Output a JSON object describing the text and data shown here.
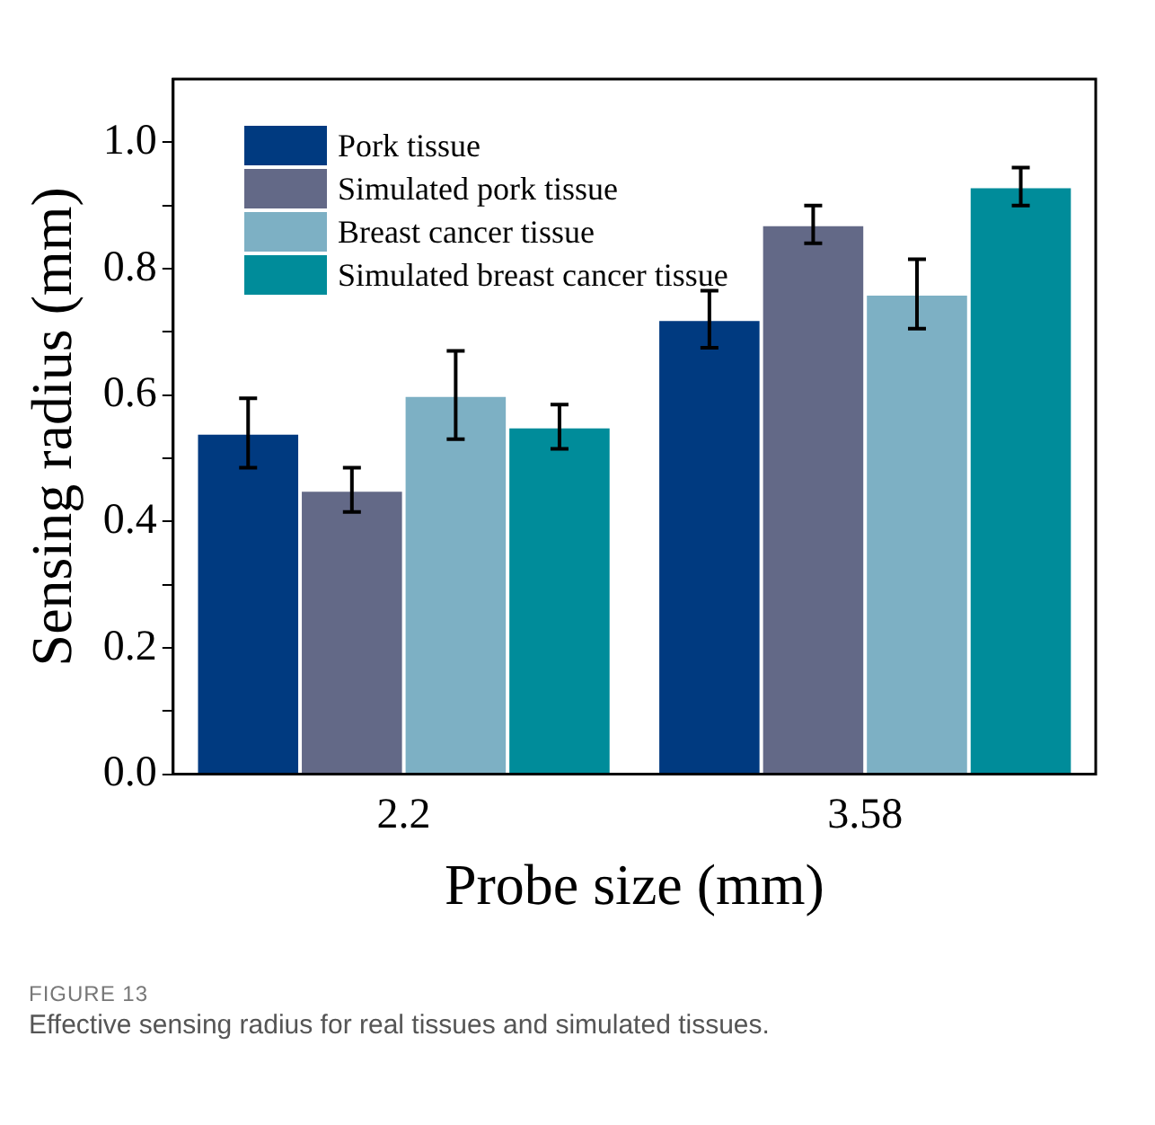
{
  "chart_data": {
    "type": "bar",
    "xlabel": "Probe size (mm)",
    "ylabel": "Sensing radius (mm)",
    "categories": [
      "2.2",
      "3.58"
    ],
    "series": [
      {
        "name": "Pork tissue",
        "color": "#003a80",
        "values": [
          0.54,
          0.72
        ],
        "errors": [
          0.055,
          0.045
        ]
      },
      {
        "name": "Simulated pork tissue",
        "color": "#636987",
        "values": [
          0.45,
          0.87
        ],
        "errors": [
          0.035,
          0.03
        ]
      },
      {
        "name": "Breast cancer tissue",
        "color": "#7db0c4",
        "values": [
          0.6,
          0.76
        ],
        "errors": [
          0.07,
          0.055
        ]
      },
      {
        "name": "Simulated breast cancer tissue",
        "color": "#008c9a",
        "values": [
          0.55,
          0.93
        ],
        "errors": [
          0.035,
          0.03
        ]
      }
    ],
    "ylim": [
      0,
      1.1
    ],
    "yticks": [
      {
        "value": 0,
        "label": "0.0"
      },
      {
        "value": 0.1,
        "label": null
      },
      {
        "value": 0.2,
        "label": "0.2"
      },
      {
        "value": 0.3,
        "label": null
      },
      {
        "value": 0.4,
        "label": "0.4"
      },
      {
        "value": 0.5,
        "label": null
      },
      {
        "value": 0.6,
        "label": "0.6"
      },
      {
        "value": 0.7,
        "label": null
      },
      {
        "value": 0.8,
        "label": "0.8"
      },
      {
        "value": 0.9,
        "label": null
      },
      {
        "value": 1.0,
        "label": "1.0"
      }
    ],
    "grid": false,
    "legend": "top left",
    "annotations": [
      "FIGURE 13",
      "Effective sensing radius for real tissues and simulated tissues."
    ]
  }
}
